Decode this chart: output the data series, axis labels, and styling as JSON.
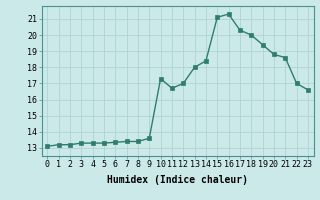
{
  "x": [
    0,
    1,
    2,
    3,
    4,
    5,
    6,
    7,
    8,
    9,
    10,
    11,
    12,
    13,
    14,
    15,
    16,
    17,
    18,
    19,
    20,
    21,
    22,
    23
  ],
  "y": [
    13.1,
    13.2,
    13.2,
    13.3,
    13.3,
    13.3,
    13.35,
    13.4,
    13.4,
    13.6,
    17.3,
    16.7,
    17.0,
    18.0,
    18.4,
    21.1,
    21.3,
    20.3,
    20.0,
    19.4,
    18.8,
    18.6,
    17.0,
    16.6
  ],
  "line_color": "#2e7d6e",
  "marker": "s",
  "markersize": 2.5,
  "linewidth": 1.0,
  "bg_color": "#cce9e9",
  "grid_color": "#aacfcf",
  "xlabel": "Humidex (Indice chaleur)",
  "xlabel_fontsize": 7,
  "tick_fontsize": 6,
  "ylim": [
    12.5,
    21.8
  ],
  "xlim": [
    -0.5,
    23.5
  ],
  "yticks": [
    13,
    14,
    15,
    16,
    17,
    18,
    19,
    20,
    21
  ],
  "xticks": [
    0,
    1,
    2,
    3,
    4,
    5,
    6,
    7,
    8,
    9,
    10,
    11,
    12,
    13,
    14,
    15,
    16,
    17,
    18,
    19,
    20,
    21,
    22,
    23
  ]
}
